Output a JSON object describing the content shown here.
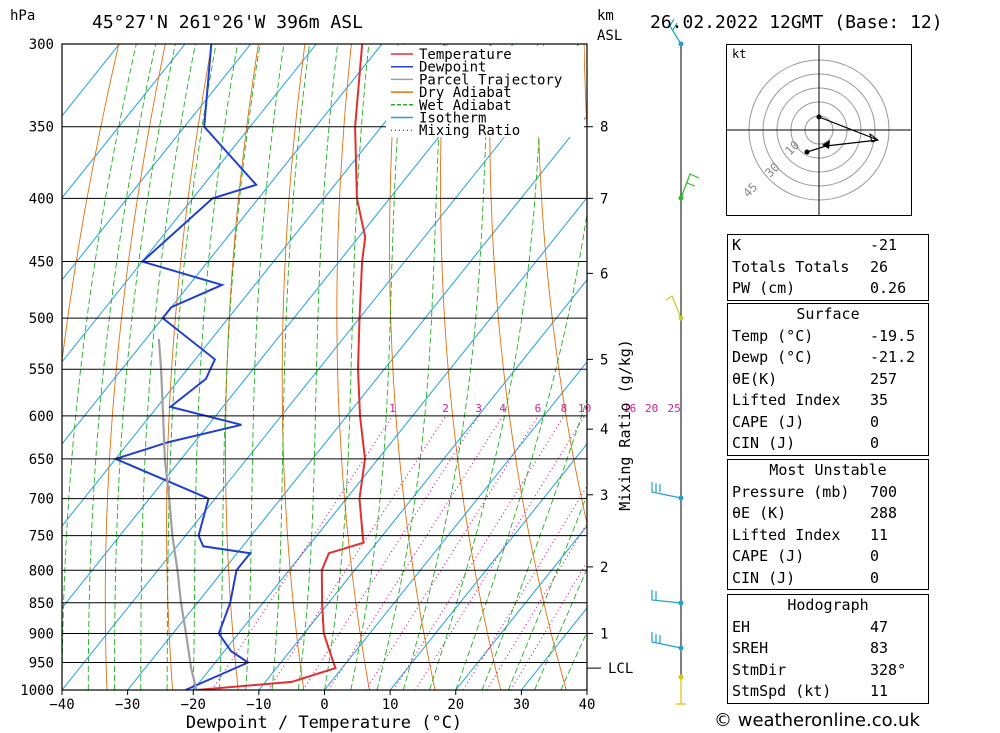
{
  "header": {
    "left_unit": "hPa",
    "location": "45°27'N  261°26'W  396m  ASL",
    "km_label": "km",
    "asl_label": "ASL",
    "datetime": "26.02.2022  12GMT  (Base: 12)"
  },
  "chart_data": {
    "type": "line",
    "title": "45°27'N  261°26'W  396m  ASL",
    "xlabel": "Dewpoint / Temperature (°C)",
    "ylabel": "hPa",
    "x_ticks": [
      -40,
      -30,
      -20,
      -10,
      0,
      10,
      20,
      30,
      40
    ],
    "pressure_levels": [
      300,
      350,
      400,
      450,
      500,
      550,
      600,
      650,
      700,
      750,
      800,
      850,
      900,
      950,
      1000
    ],
    "km_ticks": [
      {
        "label": "8",
        "p": 350
      },
      {
        "label": "7",
        "p": 400
      },
      {
        "label": "6",
        "p": 460
      },
      {
        "label": "5",
        "p": 540
      },
      {
        "label": "4",
        "p": 615
      },
      {
        "label": "3",
        "p": 695
      },
      {
        "label": "2",
        "p": 795
      },
      {
        "label": "1",
        "p": 900
      }
    ],
    "lcl_label": "LCL",
    "lcl_pressure": 960,
    "mixing_ratio_label": "Mixing Ratio (g/kg)",
    "mixing_ratio_values": [
      "1",
      "2",
      "3",
      "4",
      "6",
      "8",
      "10",
      "16",
      "20",
      "25"
    ],
    "legend": {
      "position": "top-right",
      "entries": [
        {
          "name": "Temperature",
          "color": "#e03030",
          "dash": "solid"
        },
        {
          "name": "Dewpoint",
          "color": "#2040d0",
          "dash": "solid"
        },
        {
          "name": "Parcel Trajectory",
          "color": "#a0a0a0",
          "dash": "solid"
        },
        {
          "name": "Dry Adiabat",
          "color": "#e07010",
          "dash": "solid"
        },
        {
          "name": "Wet Adiabat",
          "color": "#20b020",
          "dash": "dash"
        },
        {
          "name": "Isotherm",
          "color": "#20a0e0",
          "dash": "solid"
        },
        {
          "name": "Mixing Ratio",
          "color": "#d02090",
          "dash": "dot"
        }
      ]
    },
    "series": [
      {
        "name": "Temperature",
        "color": "#e03030",
        "points": [
          {
            "p": 1000,
            "t": -19.5
          },
          {
            "p": 985,
            "t": -6
          },
          {
            "p": 960,
            "t": -1
          },
          {
            "p": 950,
            "t": -2
          },
          {
            "p": 900,
            "t": -7
          },
          {
            "p": 850,
            "t": -11
          },
          {
            "p": 800,
            "t": -15
          },
          {
            "p": 775,
            "t": -16
          },
          {
            "p": 760,
            "t": -12
          },
          {
            "p": 750,
            "t": -13
          },
          {
            "p": 700,
            "t": -18
          },
          {
            "p": 650,
            "t": -22
          },
          {
            "p": 600,
            "t": -28
          },
          {
            "p": 550,
            "t": -34
          },
          {
            "p": 500,
            "t": -40
          },
          {
            "p": 450,
            "t": -46.5
          },
          {
            "p": 430,
            "t": -49
          },
          {
            "p": 400,
            "t": -55
          },
          {
            "p": 350,
            "t": -64
          },
          {
            "p": 300,
            "t": -73
          }
        ]
      },
      {
        "name": "Dewpoint",
        "color": "#2040d0",
        "points": [
          {
            "p": 1000,
            "t": -21.2
          },
          {
            "p": 950,
            "t": -15
          },
          {
            "p": 930,
            "t": -19
          },
          {
            "p": 900,
            "t": -23
          },
          {
            "p": 850,
            "t": -25
          },
          {
            "p": 800,
            "t": -28
          },
          {
            "p": 775,
            "t": -28
          },
          {
            "p": 765,
            "t": -36
          },
          {
            "p": 750,
            "t": -38
          },
          {
            "p": 700,
            "t": -41
          },
          {
            "p": 650,
            "t": -60
          },
          {
            "p": 630,
            "t": -54
          },
          {
            "p": 610,
            "t": -45
          },
          {
            "p": 590,
            "t": -58
          },
          {
            "p": 560,
            "t": -56
          },
          {
            "p": 540,
            "t": -57
          },
          {
            "p": 500,
            "t": -70
          },
          {
            "p": 490,
            "t": -70
          },
          {
            "p": 470,
            "t": -65
          },
          {
            "p": 450,
            "t": -80
          },
          {
            "p": 400,
            "t": -77
          },
          {
            "p": 390,
            "t": -72
          },
          {
            "p": 350,
            "t": -87
          },
          {
            "p": 300,
            "t": -96
          }
        ]
      },
      {
        "name": "Parcel Trajectory",
        "color": "#a0a0a0",
        "points": [
          {
            "p": 1000,
            "t": -19.5
          },
          {
            "p": 960,
            "t": -23
          },
          {
            "p": 900,
            "t": -28
          },
          {
            "p": 850,
            "t": -32.5
          },
          {
            "p": 800,
            "t": -37
          },
          {
            "p": 750,
            "t": -42
          },
          {
            "p": 700,
            "t": -47
          },
          {
            "p": 650,
            "t": -52.5
          },
          {
            "p": 600,
            "t": -58
          },
          {
            "p": 550,
            "t": -64
          },
          {
            "p": 520,
            "t": -68
          }
        ]
      }
    ]
  },
  "hodograph": {
    "unit": "kt",
    "ring_labels": [
      "10",
      "30",
      "45"
    ]
  },
  "indices": {
    "general": [
      {
        "label": "K",
        "value": "-21"
      },
      {
        "label": "Totals Totals",
        "value": "26"
      },
      {
        "label": "PW (cm)",
        "value": "0.26"
      }
    ],
    "surface_title": "Surface",
    "surface": [
      {
        "label": "Temp (°C)",
        "value": "-19.5"
      },
      {
        "label": "Dewp (°C)",
        "value": "-21.2"
      },
      {
        "label": "θE(K)",
        "value": "257"
      },
      {
        "label": "Lifted Index",
        "value": "35"
      },
      {
        "label": "CAPE (J)",
        "value": "0"
      },
      {
        "label": "CIN (J)",
        "value": "0"
      }
    ],
    "most_unstable_title": "Most Unstable",
    "most_unstable": [
      {
        "label": "Pressure (mb)",
        "value": "700"
      },
      {
        "label": "θE (K)",
        "value": "288"
      },
      {
        "label": "Lifted Index",
        "value": "11"
      },
      {
        "label": "CAPE (J)",
        "value": "0"
      },
      {
        "label": "CIN (J)",
        "value": "0"
      }
    ],
    "hodograph_title": "Hodograph",
    "hodograph": [
      {
        "label": "EH",
        "value": "47"
      },
      {
        "label": "SREH",
        "value": "83"
      },
      {
        "label": "StmDir",
        "value": "328°"
      },
      {
        "label": "StmSpd (kt)",
        "value": "11"
      }
    ]
  },
  "footer": {
    "credit": "© weatheronline.co.uk"
  }
}
